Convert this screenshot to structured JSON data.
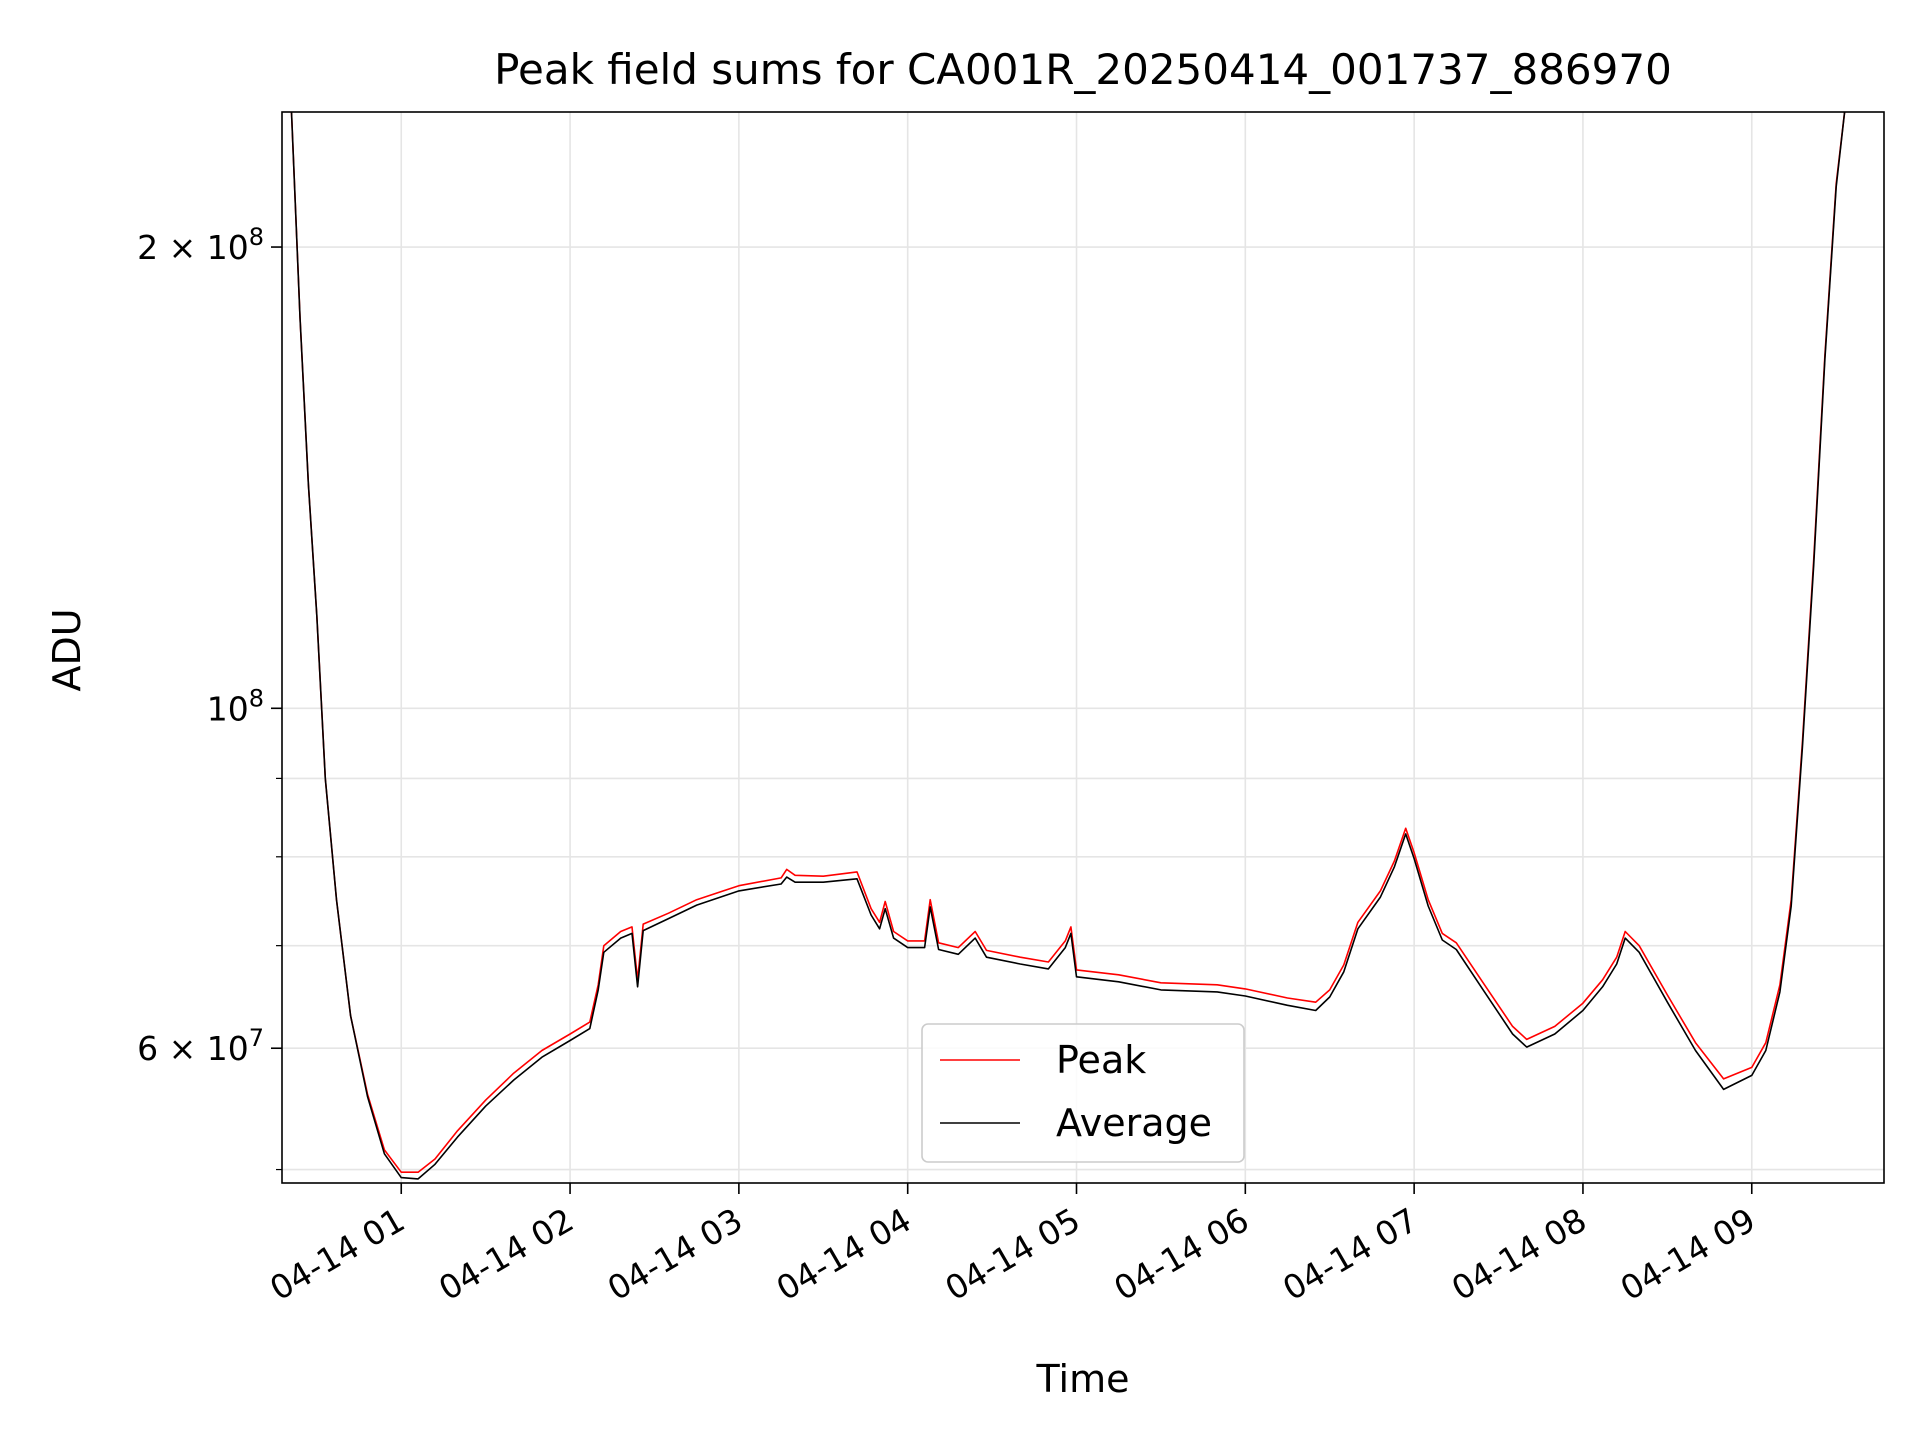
{
  "chart_data": {
    "type": "line",
    "title": "Peak field sums for CA001R_20250414_001737_886970",
    "xlabel": "Time",
    "ylabel": "ADU",
    "y_scale": "log",
    "xlim": [
      "2025-04-14T00:17:37",
      "2025-04-14T09:47:00"
    ],
    "ylim": [
      49000000,
      245000000
    ],
    "x_ticks": [
      {
        "value": "2025-04-14T01:00:00",
        "label": "04-14 01"
      },
      {
        "value": "2025-04-14T02:00:00",
        "label": "04-14 02"
      },
      {
        "value": "2025-04-14T03:00:00",
        "label": "04-14 03"
      },
      {
        "value": "2025-04-14T04:00:00",
        "label": "04-14 04"
      },
      {
        "value": "2025-04-14T05:00:00",
        "label": "04-14 05"
      },
      {
        "value": "2025-04-14T06:00:00",
        "label": "04-14 06"
      },
      {
        "value": "2025-04-14T07:00:00",
        "label": "04-14 07"
      },
      {
        "value": "2025-04-14T08:00:00",
        "label": "04-14 08"
      },
      {
        "value": "2025-04-14T09:00:00",
        "label": "04-14 09"
      }
    ],
    "y_major_ticks": [
      {
        "value": 60000000,
        "base": "6",
        "mult": " × ",
        "exp_base": "10",
        "exp": "7"
      },
      {
        "value": 100000000,
        "base": "",
        "mult": "",
        "exp_base": "10",
        "exp": "8"
      },
      {
        "value": 200000000,
        "base": "2",
        "mult": " × ",
        "exp_base": "10",
        "exp": "8"
      }
    ],
    "y_minor_ticks": [
      50000000,
      70000000,
      80000000,
      90000000
    ],
    "grid": true,
    "legend_position": "lower-center",
    "series": [
      {
        "name": "Peak",
        "color": "#ff0000",
        "points": [
          [
            "2025-04-14T00:21:00",
            245000000
          ],
          [
            "2025-04-14T00:24:00",
            180000000
          ],
          [
            "2025-04-14T00:27:00",
            140000000
          ],
          [
            "2025-04-14T00:30:00",
            115000000
          ],
          [
            "2025-04-14T00:33:00",
            90000000
          ],
          [
            "2025-04-14T00:37:00",
            75000000
          ],
          [
            "2025-04-14T00:42:00",
            63000000
          ],
          [
            "2025-04-14T00:48:00",
            56000000
          ],
          [
            "2025-04-14T00:54:00",
            51500000
          ],
          [
            "2025-04-14T01:00:00",
            49800000
          ],
          [
            "2025-04-14T01:06:00",
            49800000
          ],
          [
            "2025-04-14T01:12:00",
            50800000
          ],
          [
            "2025-04-14T01:20:00",
            53000000
          ],
          [
            "2025-04-14T01:30:00",
            55500000
          ],
          [
            "2025-04-14T01:40:00",
            57800000
          ],
          [
            "2025-04-14T01:50:00",
            59800000
          ],
          [
            "2025-04-14T02:00:00",
            61300000
          ],
          [
            "2025-04-14T02:07:00",
            62400000
          ],
          [
            "2025-04-14T02:10:00",
            66000000
          ],
          [
            "2025-04-14T02:12:00",
            70000000
          ],
          [
            "2025-04-14T02:18:00",
            71500000
          ],
          [
            "2025-04-14T02:22:00",
            72000000
          ],
          [
            "2025-04-14T02:24:00",
            66500000
          ],
          [
            "2025-04-14T02:26:00",
            72300000
          ],
          [
            "2025-04-14T02:35:00",
            73500000
          ],
          [
            "2025-04-14T02:45:00",
            75000000
          ],
          [
            "2025-04-14T03:00:00",
            76600000
          ],
          [
            "2025-04-14T03:15:00",
            77500000
          ],
          [
            "2025-04-14T03:17:00",
            78500000
          ],
          [
            "2025-04-14T03:20:00",
            77800000
          ],
          [
            "2025-04-14T03:30:00",
            77700000
          ],
          [
            "2025-04-14T03:42:00",
            78200000
          ],
          [
            "2025-04-14T03:47:00",
            74000000
          ],
          [
            "2025-04-14T03:50:00",
            72500000
          ],
          [
            "2025-04-14T03:52:00",
            74800000
          ],
          [
            "2025-04-14T03:55:00",
            71500000
          ],
          [
            "2025-04-14T04:00:00",
            70500000
          ],
          [
            "2025-04-14T04:06:00",
            70500000
          ],
          [
            "2025-04-14T04:08:00",
            75000000
          ],
          [
            "2025-04-14T04:11:00",
            70300000
          ],
          [
            "2025-04-14T04:18:00",
            69800000
          ],
          [
            "2025-04-14T04:24:00",
            71500000
          ],
          [
            "2025-04-14T04:28:00",
            69500000
          ],
          [
            "2025-04-14T04:40:00",
            68800000
          ],
          [
            "2025-04-14T04:50:00",
            68300000
          ],
          [
            "2025-04-14T04:56:00",
            70500000
          ],
          [
            "2025-04-14T04:58:00",
            72000000
          ],
          [
            "2025-04-14T05:00:00",
            67500000
          ],
          [
            "2025-04-14T05:15:00",
            67000000
          ],
          [
            "2025-04-14T05:30:00",
            66200000
          ],
          [
            "2025-04-14T05:50:00",
            66000000
          ],
          [
            "2025-04-14T06:00:00",
            65600000
          ],
          [
            "2025-04-14T06:15:00",
            64700000
          ],
          [
            "2025-04-14T06:25:00",
            64300000
          ],
          [
            "2025-04-14T06:30:00",
            65500000
          ],
          [
            "2025-04-14T06:35:00",
            68000000
          ],
          [
            "2025-04-14T06:40:00",
            72500000
          ],
          [
            "2025-04-14T06:48:00",
            76000000
          ],
          [
            "2025-04-14T06:53:00",
            79500000
          ],
          [
            "2025-04-14T06:57:00",
            83500000
          ],
          [
            "2025-04-14T07:00:00",
            80500000
          ],
          [
            "2025-04-14T07:05:00",
            75000000
          ],
          [
            "2025-04-14T07:10:00",
            71300000
          ],
          [
            "2025-04-14T07:15:00",
            70300000
          ],
          [
            "2025-04-14T07:25:00",
            66000000
          ],
          [
            "2025-04-14T07:35:00",
            62000000
          ],
          [
            "2025-04-14T07:40:00",
            60800000
          ],
          [
            "2025-04-14T07:50:00",
            62000000
          ],
          [
            "2025-04-14T08:00:00",
            64200000
          ],
          [
            "2025-04-14T08:07:00",
            66500000
          ],
          [
            "2025-04-14T08:12:00",
            68800000
          ],
          [
            "2025-04-14T08:15:00",
            71500000
          ],
          [
            "2025-04-14T08:20:00",
            70000000
          ],
          [
            "2025-04-14T08:30:00",
            65000000
          ],
          [
            "2025-04-14T08:40:00",
            60500000
          ],
          [
            "2025-04-14T08:50:00",
            57300000
          ],
          [
            "2025-04-14T09:00:00",
            58300000
          ],
          [
            "2025-04-14T09:05:00",
            60500000
          ],
          [
            "2025-04-14T09:10:00",
            66000000
          ],
          [
            "2025-04-14T09:14:00",
            75000000
          ],
          [
            "2025-04-14T09:18:00",
            95000000
          ],
          [
            "2025-04-14T09:22:00",
            125000000
          ],
          [
            "2025-04-14T09:26:00",
            170000000
          ],
          [
            "2025-04-14T09:30:00",
            220000000
          ],
          [
            "2025-04-14T09:33:00",
            245000000
          ]
        ]
      },
      {
        "name": "Average",
        "color": "#000000",
        "points": [
          [
            "2025-04-14T00:21:00",
            245000000
          ],
          [
            "2025-04-14T00:24:00",
            180000000
          ],
          [
            "2025-04-14T00:27:00",
            140000000
          ],
          [
            "2025-04-14T00:30:00",
            115000000
          ],
          [
            "2025-04-14T00:33:00",
            90000000
          ],
          [
            "2025-04-14T00:37:00",
            75000000
          ],
          [
            "2025-04-14T00:42:00",
            63000000
          ],
          [
            "2025-04-14T00:48:00",
            55800000
          ],
          [
            "2025-04-14T00:54:00",
            51200000
          ],
          [
            "2025-04-14T01:00:00",
            49400000
          ],
          [
            "2025-04-14T01:06:00",
            49300000
          ],
          [
            "2025-04-14T01:12:00",
            50400000
          ],
          [
            "2025-04-14T01:20:00",
            52500000
          ],
          [
            "2025-04-14T01:30:00",
            55000000
          ],
          [
            "2025-04-14T01:40:00",
            57200000
          ],
          [
            "2025-04-14T01:50:00",
            59200000
          ],
          [
            "2025-04-14T02:00:00",
            60700000
          ],
          [
            "2025-04-14T02:07:00",
            61800000
          ],
          [
            "2025-04-14T02:10:00",
            65500000
          ],
          [
            "2025-04-14T02:12:00",
            69300000
          ],
          [
            "2025-04-14T02:18:00",
            70800000
          ],
          [
            "2025-04-14T02:22:00",
            71300000
          ],
          [
            "2025-04-14T02:24:00",
            65800000
          ],
          [
            "2025-04-14T02:26:00",
            71600000
          ],
          [
            "2025-04-14T02:35:00",
            72900000
          ],
          [
            "2025-04-14T02:45:00",
            74400000
          ],
          [
            "2025-04-14T03:00:00",
            76000000
          ],
          [
            "2025-04-14T03:15:00",
            76800000
          ],
          [
            "2025-04-14T03:17:00",
            77600000
          ],
          [
            "2025-04-14T03:20:00",
            77000000
          ],
          [
            "2025-04-14T03:30:00",
            77000000
          ],
          [
            "2025-04-14T03:42:00",
            77400000
          ],
          [
            "2025-04-14T03:47:00",
            73300000
          ],
          [
            "2025-04-14T03:50:00",
            71800000
          ],
          [
            "2025-04-14T03:52:00",
            74000000
          ],
          [
            "2025-04-14T03:55:00",
            70800000
          ],
          [
            "2025-04-14T04:00:00",
            69800000
          ],
          [
            "2025-04-14T04:06:00",
            69800000
          ],
          [
            "2025-04-14T04:08:00",
            74200000
          ],
          [
            "2025-04-14T04:11:00",
            69600000
          ],
          [
            "2025-04-14T04:18:00",
            69100000
          ],
          [
            "2025-04-14T04:24:00",
            70800000
          ],
          [
            "2025-04-14T04:28:00",
            68800000
          ],
          [
            "2025-04-14T04:40:00",
            68100000
          ],
          [
            "2025-04-14T04:50:00",
            67600000
          ],
          [
            "2025-04-14T04:56:00",
            69800000
          ],
          [
            "2025-04-14T04:58:00",
            71300000
          ],
          [
            "2025-04-14T05:00:00",
            66800000
          ],
          [
            "2025-04-14T05:15:00",
            66300000
          ],
          [
            "2025-04-14T05:30:00",
            65500000
          ],
          [
            "2025-04-14T05:50:00",
            65300000
          ],
          [
            "2025-04-14T06:00:00",
            64900000
          ],
          [
            "2025-04-14T06:15:00",
            64000000
          ],
          [
            "2025-04-14T06:25:00",
            63500000
          ],
          [
            "2025-04-14T06:30:00",
            64800000
          ],
          [
            "2025-04-14T06:35:00",
            67300000
          ],
          [
            "2025-04-14T06:40:00",
            71800000
          ],
          [
            "2025-04-14T06:48:00",
            75300000
          ],
          [
            "2025-04-14T06:53:00",
            78800000
          ],
          [
            "2025-04-14T06:57:00",
            82800000
          ],
          [
            "2025-04-14T07:00:00",
            79800000
          ],
          [
            "2025-04-14T07:05:00",
            74300000
          ],
          [
            "2025-04-14T07:10:00",
            70600000
          ],
          [
            "2025-04-14T07:15:00",
            69600000
          ],
          [
            "2025-04-14T07:25:00",
            65300000
          ],
          [
            "2025-04-14T07:35:00",
            61300000
          ],
          [
            "2025-04-14T07:40:00",
            60100000
          ],
          [
            "2025-04-14T07:50:00",
            61300000
          ],
          [
            "2025-04-14T08:00:00",
            63500000
          ],
          [
            "2025-04-14T08:07:00",
            65800000
          ],
          [
            "2025-04-14T08:12:00",
            68100000
          ],
          [
            "2025-04-14T08:15:00",
            70800000
          ],
          [
            "2025-04-14T08:20:00",
            69300000
          ],
          [
            "2025-04-14T08:30:00",
            64300000
          ],
          [
            "2025-04-14T08:40:00",
            59800000
          ],
          [
            "2025-04-14T08:50:00",
            56400000
          ],
          [
            "2025-04-14T09:00:00",
            57600000
          ],
          [
            "2025-04-14T09:05:00",
            59800000
          ],
          [
            "2025-04-14T09:10:00",
            65300000
          ],
          [
            "2025-04-14T09:14:00",
            74300000
          ],
          [
            "2025-04-14T09:18:00",
            94300000
          ],
          [
            "2025-04-14T09:22:00",
            124000000
          ],
          [
            "2025-04-14T09:26:00",
            169000000
          ],
          [
            "2025-04-14T09:30:00",
            219000000
          ],
          [
            "2025-04-14T09:33:00",
            245000000
          ]
        ]
      }
    ]
  }
}
